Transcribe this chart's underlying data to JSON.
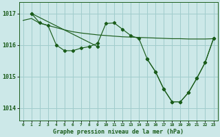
{
  "background_color": "#cce8e8",
  "grid_color": "#a0cccc",
  "line_color": "#1a5c1a",
  "title": "Graphe pression niveau de la mer (hPa)",
  "yticks": [
    1014,
    1015,
    1016,
    1017
  ],
  "ylim": [
    1013.6,
    1017.35
  ],
  "xlim": [
    -0.5,
    23.5
  ],
  "hours": [
    0,
    1,
    2,
    3,
    4,
    5,
    6,
    7,
    8,
    9,
    10,
    11,
    12,
    13,
    14,
    15,
    16,
    17,
    18,
    19,
    20,
    21,
    22,
    23
  ],
  "series_flat_x": [
    0,
    1,
    2,
    3,
    4,
    5,
    6,
    7,
    8,
    9,
    10,
    11,
    12,
    13,
    14,
    15,
    16,
    17,
    18,
    19,
    20,
    21,
    22,
    23
  ],
  "series_flat_y": [
    1016.78,
    1016.84,
    1016.69,
    1016.62,
    1016.55,
    1016.48,
    1016.42,
    1016.38,
    1016.35,
    1016.32,
    1016.3,
    1016.28,
    1016.26,
    1016.25,
    1016.24,
    1016.23,
    1016.22,
    1016.21,
    1016.2,
    1016.2,
    1016.19,
    1016.19,
    1016.19,
    1016.2
  ],
  "series_main_x": [
    1,
    2,
    3,
    4,
    5,
    6,
    7,
    8,
    9,
    10,
    11,
    12,
    13,
    14,
    15,
    16,
    17,
    18,
    19,
    20,
    21,
    22,
    23
  ],
  "series_main_y": [
    1017.0,
    1016.7,
    1016.62,
    1016.0,
    1015.82,
    1015.82,
    1015.9,
    1015.95,
    1016.05,
    1016.68,
    1016.7,
    1016.5,
    1016.3,
    1016.2,
    1015.55,
    1015.15,
    1014.6,
    1014.2,
    1014.2,
    1014.5,
    1014.95,
    1015.45,
    1016.2
  ],
  "series_diag_x": [
    1,
    9,
    15,
    18,
    19,
    20,
    21,
    22,
    23
  ],
  "series_diag_y": [
    1017.0,
    1015.95,
    1015.55,
    1014.55,
    1014.2,
    1014.5,
    1014.95,
    1015.45,
    1016.2
  ]
}
